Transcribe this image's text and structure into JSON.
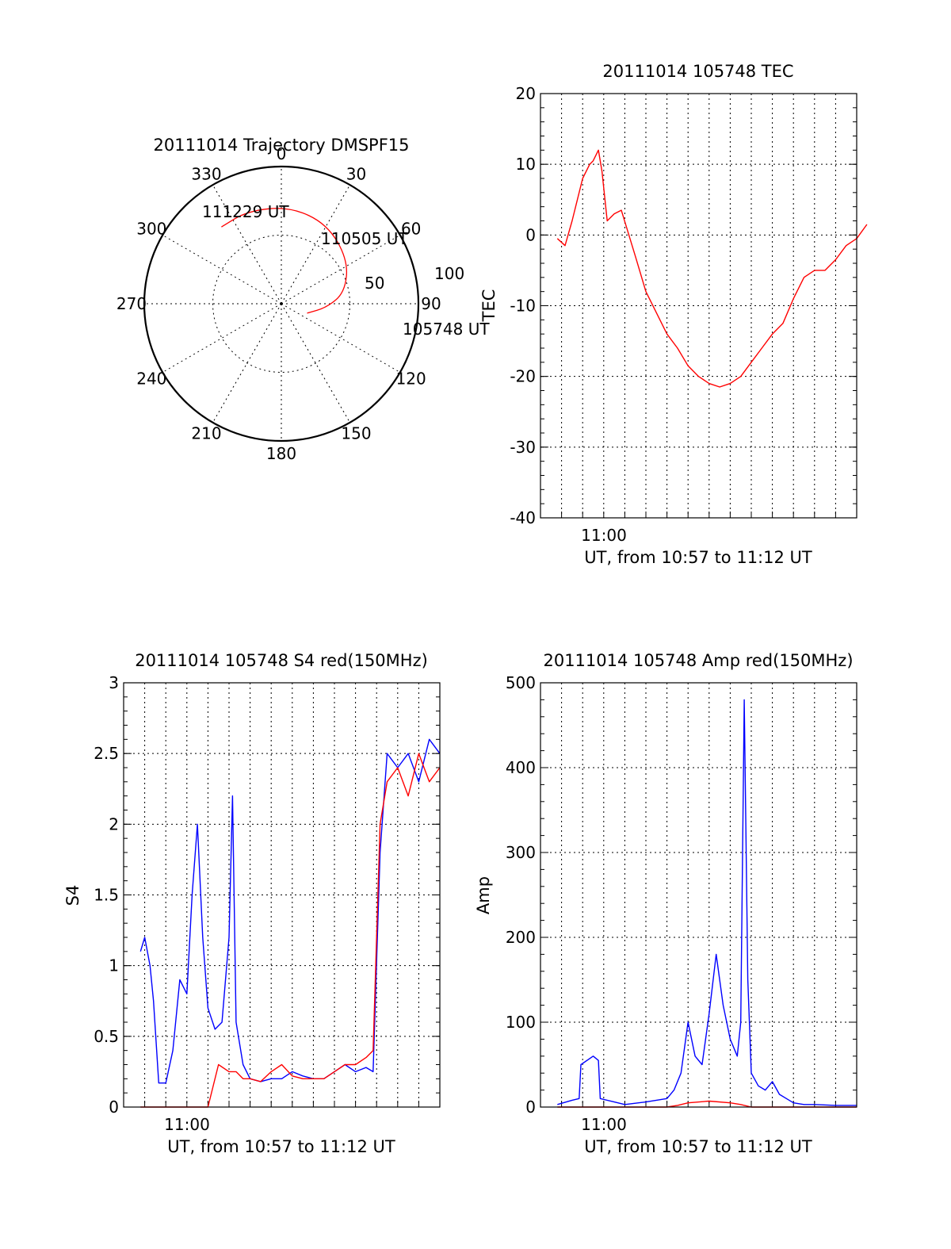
{
  "colors": {
    "red_series": "#ff0000",
    "blue_series": "#0000ff",
    "axis": "#000000",
    "background": "#ffffff"
  },
  "chart_data": [
    {
      "id": "trajectory",
      "type": "polar",
      "title": "20111014 Trajectory DMSPF15",
      "azimuth_labels": [
        "0",
        "30",
        "60",
        "90",
        "120",
        "150",
        "180",
        "210",
        "240",
        "270",
        "300",
        "330"
      ],
      "elevation_labels": [
        "50",
        "100"
      ],
      "grid": true,
      "track": {
        "color": "#ff0000",
        "points": [
          {
            "time": "105748 UT",
            "azimuth": 110,
            "elevation": 20
          },
          {
            "azimuth": 95,
            "elevation": 33
          },
          {
            "azimuth": 80,
            "elevation": 47
          },
          {
            "time": "110505 UT",
            "azimuth": 57,
            "elevation": 58
          },
          {
            "azimuth": 30,
            "elevation": 67
          },
          {
            "azimuth": 5,
            "elevation": 71
          },
          {
            "azimuth": -20,
            "elevation": 72
          },
          {
            "time": "111229 UT",
            "azimuth": -38,
            "elevation": 71
          }
        ],
        "annotations": [
          "105748 UT",
          "110505 UT",
          "111229 UT"
        ]
      }
    },
    {
      "id": "tec",
      "type": "line",
      "title": "20111014 105748 TEC",
      "xlabel": "UT, from 10:57 to 11:12 UT",
      "ylabel": "TEC",
      "xlim": [
        "10:57",
        "11:12"
      ],
      "ylim": [
        -40,
        20
      ],
      "yticks": [
        "20",
        "10",
        "0",
        "-10",
        "-20",
        "-30",
        "-40"
      ],
      "xtick_label": "11:00",
      "grid": true,
      "series": [
        {
          "color": "#ff0000",
          "x": [
            "10:57:48",
            "10:58:10",
            "10:58:30",
            "10:59:00",
            "10:59:20",
            "10:59:30",
            "10:59:45",
            "10:59:55",
            "11:00:10",
            "11:00:30",
            "11:00:50",
            "11:01:30",
            "11:02:00",
            "11:02:30",
            "11:03:00",
            "11:03:30",
            "11:04:00",
            "11:04:30",
            "11:05:00",
            "11:05:30",
            "11:06:00",
            "11:06:30",
            "11:07:00",
            "11:07:30",
            "11:08:00",
            "11:08:30",
            "11:09:00",
            "11:09:30",
            "11:10:00",
            "11:10:30",
            "11:11:00",
            "11:11:30",
            "11:12:00",
            "11:12:29"
          ],
          "y": [
            -0.5,
            -1.5,
            2,
            8,
            10,
            10.5,
            12,
            9,
            2,
            3,
            3.5,
            -3,
            -8,
            -11,
            -14,
            -16,
            -18.5,
            -20,
            -21,
            -21.5,
            -21,
            -20,
            -18,
            -16,
            -14,
            -12.5,
            -9,
            -6,
            -5,
            -5,
            -3.5,
            -1.5,
            -0.5,
            1.5
          ]
        }
      ]
    },
    {
      "id": "s4",
      "type": "line",
      "title": "20111014 105748 S4 red(150MHz)",
      "xlabel": "UT, from 10:57 to 11:12 UT",
      "ylabel": "S4",
      "xlim": [
        "10:57",
        "11:12"
      ],
      "ylim": [
        0,
        3
      ],
      "yticks": [
        "3",
        "2.5",
        "2",
        "1.5",
        "1",
        "0.5",
        "0"
      ],
      "xtick_label": "11:00",
      "grid": true,
      "series": [
        {
          "color": "#0000ff",
          "x": [
            "10:57:48",
            "10:58:00",
            "10:58:15",
            "10:58:25",
            "10:58:40",
            "10:59:00",
            "10:59:20",
            "10:59:40",
            "11:00:00",
            "11:00:15",
            "11:00:30",
            "11:00:45",
            "11:01:00",
            "11:01:20",
            "11:01:40",
            "11:02:00",
            "11:02:10",
            "11:02:20",
            "11:02:40",
            "11:03:00",
            "11:03:30",
            "11:04:00",
            "11:04:30",
            "11:05:00",
            "11:05:30",
            "11:06:00",
            "11:06:30",
            "11:07:00",
            "11:07:30",
            "11:08:00",
            "11:08:30",
            "11:08:50",
            "11:09:10",
            "11:09:30",
            "11:10:00",
            "11:10:30",
            "11:11:00",
            "11:11:30",
            "11:12:00"
          ],
          "y": [
            1.1,
            1.2,
            1.0,
            0.75,
            0.17,
            0.17,
            0.4,
            0.9,
            0.8,
            1.5,
            2.0,
            1.2,
            0.7,
            0.55,
            0.6,
            1.2,
            2.2,
            0.6,
            0.3,
            0.2,
            0.18,
            0.2,
            0.2,
            0.25,
            0.22,
            0.2,
            0.2,
            0.25,
            0.3,
            0.25,
            0.28,
            0.25,
            1.8,
            2.5,
            2.4,
            2.5,
            2.3,
            2.6,
            2.5
          ]
        },
        {
          "color": "#ff0000",
          "x": [
            "10:57:48",
            "10:58:30",
            "10:59:00",
            "10:59:30",
            "11:00:00",
            "11:00:30",
            "11:01:00",
            "11:01:30",
            "11:02:00",
            "11:02:20",
            "11:02:40",
            "11:03:00",
            "11:03:30",
            "11:04:00",
            "11:04:30",
            "11:05:00",
            "11:05:30",
            "11:06:00",
            "11:06:30",
            "11:07:00",
            "11:07:30",
            "11:08:00",
            "11:08:30",
            "11:08:50",
            "11:09:10",
            "11:09:30",
            "11:10:00",
            "11:10:30",
            "11:11:00",
            "11:11:30",
            "11:12:00"
          ],
          "y": [
            0.0,
            0.0,
            0.0,
            0.0,
            0.0,
            0.0,
            0.0,
            0.3,
            0.25,
            0.25,
            0.2,
            0.2,
            0.18,
            0.25,
            0.3,
            0.22,
            0.2,
            0.2,
            0.2,
            0.25,
            0.3,
            0.3,
            0.35,
            0.4,
            2.0,
            2.3,
            2.4,
            2.2,
            2.5,
            2.3,
            2.4
          ]
        }
      ]
    },
    {
      "id": "amp",
      "type": "line",
      "title": "20111014 105748 Amp red(150MHz)",
      "xlabel": "UT, from 10:57 to 11:12 UT",
      "ylabel": "Amp",
      "xlim": [
        "10:57",
        "11:12"
      ],
      "ylim": [
        0,
        500
      ],
      "yticks": [
        "500",
        "400",
        "300",
        "200",
        "100",
        "0"
      ],
      "xtick_label": "11:00",
      "grid": true,
      "series": [
        {
          "color": "#0000ff",
          "x": [
            "10:57:48",
            "10:58:30",
            "10:58:50",
            "10:58:55",
            "10:59:30",
            "10:59:45",
            "10:59:50",
            "11:00:30",
            "11:01:00",
            "11:02:00",
            "11:03:00",
            "11:03:20",
            "11:03:40",
            "11:04:00",
            "11:04:20",
            "11:04:40",
            "11:05:00",
            "11:05:20",
            "11:05:40",
            "11:06:00",
            "11:06:20",
            "11:06:30",
            "11:06:40",
            "11:06:50",
            "11:07:00",
            "11:07:20",
            "11:07:40",
            "11:08:00",
            "11:08:20",
            "11:08:40",
            "11:09:00",
            "11:09:30",
            "11:10:00",
            "11:11:00",
            "11:12:00"
          ],
          "y": [
            3,
            8,
            10,
            50,
            60,
            55,
            10,
            6,
            3,
            6,
            10,
            20,
            40,
            100,
            60,
            50,
            110,
            180,
            120,
            80,
            60,
            100,
            480,
            150,
            40,
            25,
            20,
            30,
            15,
            10,
            5,
            3,
            3,
            2,
            2
          ]
        },
        {
          "color": "#ff0000",
          "x": [
            "10:57:48",
            "11:03:00",
            "11:03:30",
            "11:04:00",
            "11:05:00",
            "11:06:00",
            "11:06:30",
            "11:07:00",
            "11:12:00"
          ],
          "y": [
            0,
            0,
            2,
            5,
            7,
            5,
            3,
            0,
            0
          ]
        }
      ]
    }
  ]
}
